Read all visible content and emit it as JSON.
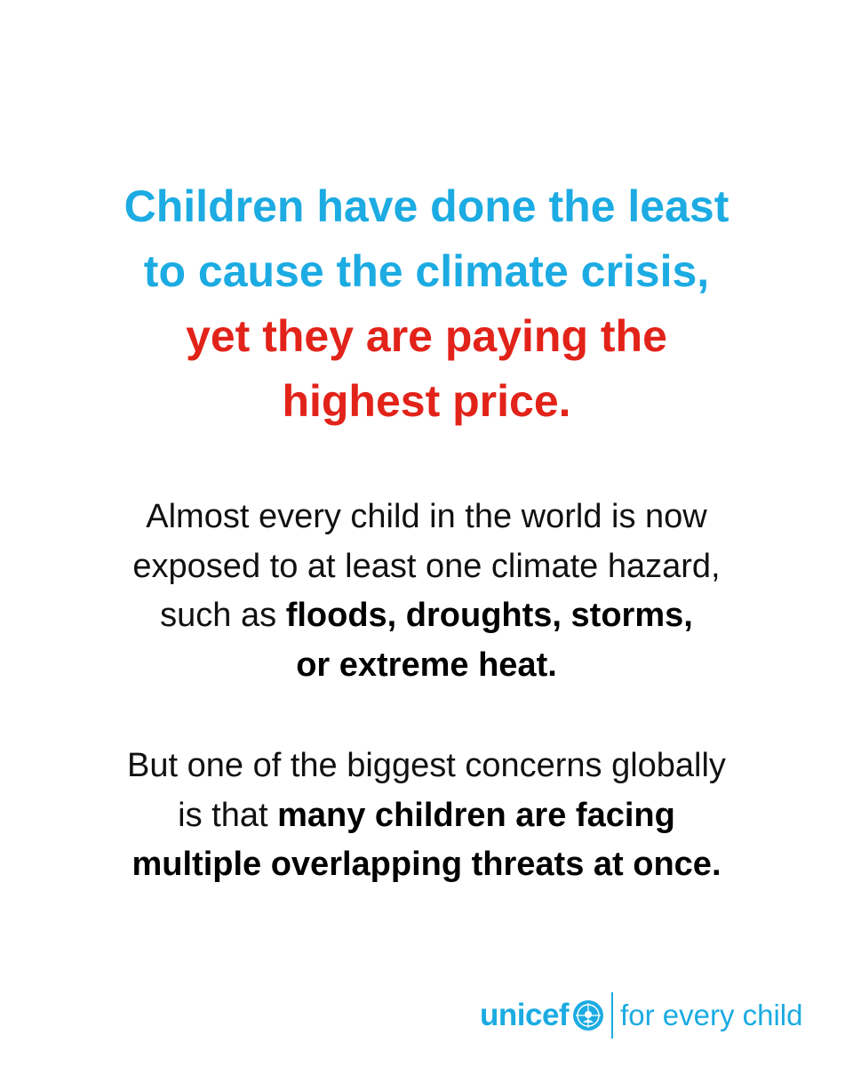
{
  "headline": {
    "lines": [
      {
        "text": "Children have done the least",
        "color": "#1cabe2"
      },
      {
        "text": "to cause the climate crisis,",
        "color": "#1cabe2"
      },
      {
        "text": "yet they are paying the",
        "color": "#e2231a"
      },
      {
        "text": "highest price.",
        "color": "#e2231a"
      }
    ]
  },
  "paragraphs": [
    {
      "lines": [
        [
          {
            "text": "Almost every child in the world is now",
            "bold": false
          }
        ],
        [
          {
            "text": "exposed to at least one climate hazard,",
            "bold": false
          }
        ],
        [
          {
            "text": "such as ",
            "bold": false
          },
          {
            "text": "floods, droughts, storms,",
            "bold": true
          }
        ],
        [
          {
            "text": "or extreme heat.",
            "bold": true
          }
        ]
      ]
    },
    {
      "lines": [
        [
          {
            "text": "But one of the biggest concerns globally",
            "bold": false
          }
        ],
        [
          {
            "text": "is that ",
            "bold": false
          },
          {
            "text": "many children are facing",
            "bold": true
          }
        ],
        [
          {
            "text": "multiple overlapping threats at once.",
            "bold": true
          }
        ]
      ]
    }
  ],
  "logo": {
    "brand": "unicef",
    "tagline": "for every child"
  }
}
